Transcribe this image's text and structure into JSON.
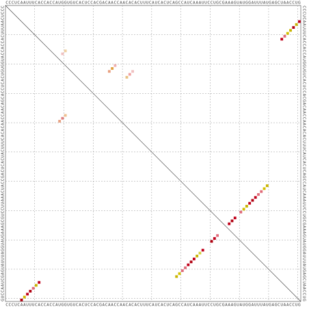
{
  "chart_data": {
    "type": "dotplot",
    "categories": [
      "C",
      "C",
      "C",
      "U",
      "C",
      "A",
      "A",
      "U",
      "U",
      "U",
      "C",
      "A",
      "C",
      "C",
      "A",
      "C",
      "C",
      "A",
      "U",
      "G",
      "G",
      "U",
      "G",
      "U",
      "C",
      "A",
      "C",
      "U",
      "C",
      "C",
      "A",
      "C",
      "G",
      "A",
      "C",
      "A",
      "A",
      "C",
      "C",
      "A",
      "A",
      "C",
      "A",
      "C",
      "A",
      "C",
      "U",
      "U",
      "U",
      "C",
      "A",
      "U",
      "C",
      "A",
      "C",
      "U",
      "C",
      "A",
      "G",
      "C",
      "C",
      "A",
      "U",
      "C",
      "A",
      "A",
      "A",
      "U",
      "U",
      "C",
      "C",
      "U",
      "G",
      "C",
      "G",
      "A",
      "A",
      "A",
      "G",
      "U",
      "A",
      "U",
      "G",
      "G",
      "A",
      "U",
      "U",
      "U",
      "A",
      "U",
      "G",
      "A",
      "G",
      "C",
      "U",
      "A",
      "A",
      "C",
      "C",
      "U",
      "G"
    ],
    "series": [
      {
        "x": [
          5,
          6,
          7,
          8,
          9,
          10,
          11
        ],
        "y": [
          100,
          99,
          98,
          97,
          96,
          95,
          94
        ],
        "colors": [
          "#b00010",
          "#d4b800",
          "#c0001a",
          "#b00010",
          "#e06a78",
          "#c8b400",
          "#c0001a"
        ]
      },
      {
        "x": [
          58,
          59,
          60,
          61,
          62,
          63,
          64,
          65,
          66,
          67,
          70,
          71,
          72,
          76,
          77,
          78,
          80,
          81,
          82,
          83,
          84,
          85,
          86,
          87,
          88,
          89
        ],
        "y": [
          92,
          91,
          90,
          89,
          88,
          87,
          86,
          85,
          84,
          83,
          80,
          79,
          78,
          74,
          73,
          72,
          70,
          69,
          68,
          67,
          66,
          65,
          64,
          63,
          62,
          61
        ],
        "colors": [
          "#c8b400",
          "#d4c000",
          "#e06a78",
          "#e06a78",
          "#c0001a",
          "#b00010",
          "#c0001a",
          "#c8b400",
          "#d4d040",
          "#c0001a",
          "#b00010",
          "#c0001a",
          "#e06a78",
          "#c0001a",
          "#b00010",
          "#c0001a",
          "#e06a78",
          "#d4c000",
          "#c8b400",
          "#c0001a",
          "#b00010",
          "#c0001a",
          "#e06a78",
          "#e06a78",
          "#d4c000",
          "#c8b400"
        ]
      },
      {
        "x": [
          94,
          95,
          96,
          97,
          98,
          99,
          100
        ],
        "y": [
          11,
          10,
          9,
          8,
          7,
          6,
          5
        ],
        "colors": [
          "#c0001a",
          "#e06a78",
          "#d4c000",
          "#c8b400",
          "#b00010",
          "#c8b400",
          "#c0001a"
        ]
      },
      {
        "x": [
          19,
          20,
          35,
          36,
          37,
          41,
          42,
          43,
          18,
          19,
          20
        ],
        "y": [
          16,
          15,
          22,
          21,
          20,
          24,
          23,
          22,
          39,
          38,
          37
        ],
        "colors": [
          "#f0c0c0",
          "#f0d0a0",
          "#e8a080",
          "#e0a040",
          "#f0b0b0",
          "#e8c080",
          "#f0a0a0",
          "#f0c0c0",
          "#e8a080",
          "#e08080",
          "#f0c090"
        ]
      }
    ]
  }
}
